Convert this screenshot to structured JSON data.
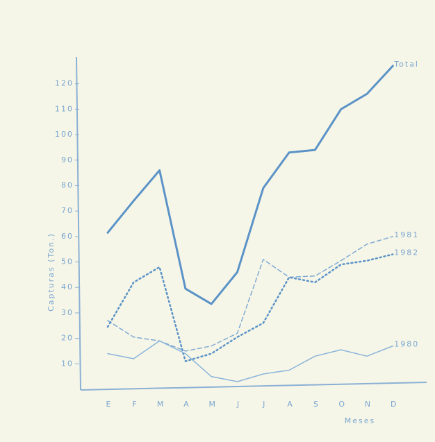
{
  "chart_data": {
    "type": "line",
    "y_label": "Capturas (Ton.)",
    "x_label": "Meses",
    "categories": [
      "E",
      "F",
      "M",
      "A",
      "M",
      "J",
      "J",
      "A",
      "S",
      "O",
      "N",
      "D"
    ],
    "series": [
      {
        "name": "Total",
        "color": "#5b93c7",
        "style": "solid",
        "width": 3,
        "values": [
          61.5,
          74,
          86,
          39.5,
          33.5,
          46,
          79,
          93,
          94,
          110,
          116,
          127
        ]
      },
      {
        "name": "1981",
        "color": "#7eaad3",
        "style": "dashed",
        "width": 1.5,
        "values": [
          27,
          20.5,
          19,
          15,
          17,
          22,
          51,
          44,
          44.5,
          50.5,
          57,
          60
        ]
      },
      {
        "name": "1982",
        "color": "#5b93c7",
        "style": "dotted",
        "width": 2.5,
        "values": [
          24.5,
          42,
          48,
          11,
          14,
          20.5,
          26,
          44,
          42,
          49,
          50.5,
          53
        ]
      },
      {
        "name": "1980",
        "color": "#8ab4da",
        "style": "solid",
        "width": 1.5,
        "values": [
          14,
          12,
          19,
          14,
          5,
          3,
          6,
          7.5,
          13,
          15.5,
          13,
          17
        ]
      }
    ],
    "ylim": [
      0,
      130
    ],
    "yticks": [
      10,
      20,
      30,
      40,
      50,
      60,
      70,
      80,
      90,
      100,
      110,
      120
    ]
  }
}
